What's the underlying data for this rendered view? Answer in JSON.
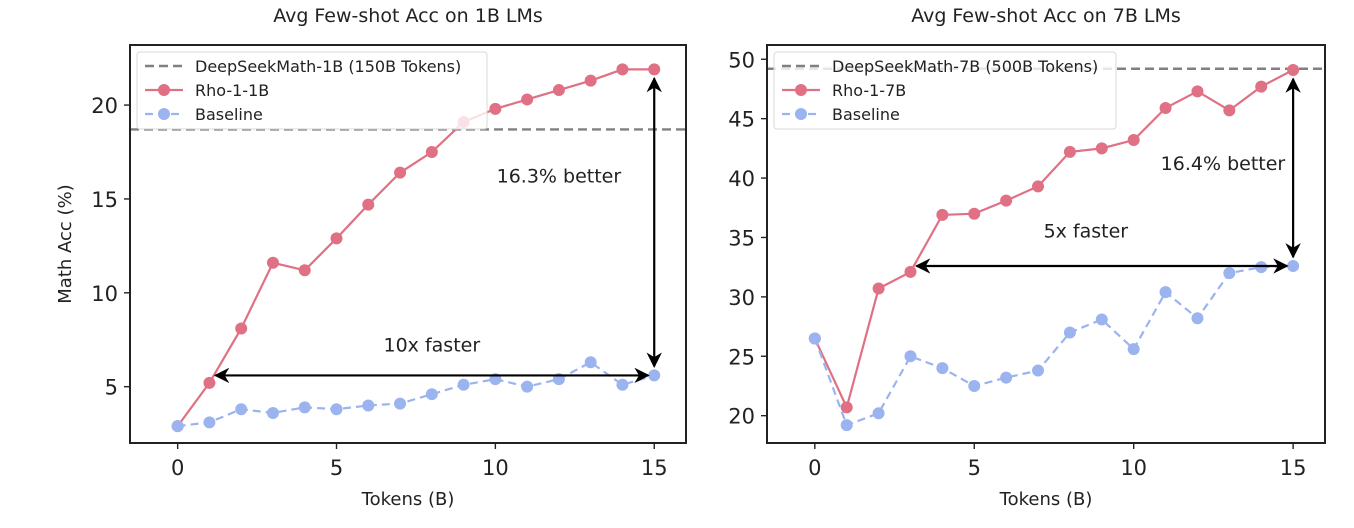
{
  "chart_data": [
    {
      "type": "line",
      "title": "Avg Few-shot Acc on 1B LMs",
      "xlabel": "Tokens (B)",
      "ylabel": "Math Acc (%)",
      "xlim": [
        -1.5,
        16.0
      ],
      "ylim": [
        2.0,
        23.2
      ],
      "xticks": [
        0,
        5,
        10,
        15
      ],
      "yticks": [
        5,
        10,
        15,
        20
      ],
      "grid": false,
      "legend_position": "top-left",
      "reference_line": {
        "label": "DeepSeekMath-1B (150B Tokens)",
        "value": 18.7,
        "color": "#808080"
      },
      "series": [
        {
          "name": "Rho-1-1B",
          "color": "#e07083",
          "dashed": false,
          "x": [
            0,
            1,
            2,
            3,
            4,
            5,
            6,
            7,
            8,
            9,
            10,
            11,
            12,
            13,
            14,
            15
          ],
          "y": [
            2.9,
            5.2,
            8.1,
            11.6,
            11.2,
            12.9,
            14.7,
            16.4,
            17.5,
            19.1,
            19.8,
            20.3,
            20.8,
            21.3,
            21.9,
            21.9
          ]
        },
        {
          "name": "Baseline",
          "color": "#9bb4f0",
          "dashed": true,
          "x": [
            0,
            1,
            2,
            3,
            4,
            5,
            6,
            7,
            8,
            9,
            10,
            11,
            12,
            13,
            14,
            15
          ],
          "y": [
            2.9,
            3.1,
            3.8,
            3.6,
            3.9,
            3.8,
            4.0,
            4.1,
            4.6,
            5.1,
            5.4,
            5.0,
            5.4,
            6.3,
            5.1,
            5.6
          ]
        }
      ],
      "annotations": [
        {
          "text": "16.3% better",
          "kind": "vertical-arrow",
          "x": 15,
          "y_from": 5.6,
          "y_to": 21.9,
          "label_x": 12.0,
          "label_y": 16.2
        },
        {
          "text": "10x faster",
          "kind": "horizontal-arrow",
          "y": 5.6,
          "x_from": 1,
          "x_to": 15,
          "label_x": 8.0,
          "label_y": 7.2
        }
      ]
    },
    {
      "type": "line",
      "title": "Avg Few-shot Acc on 7B LMs",
      "xlabel": "Tokens (B)",
      "ylabel": "",
      "xlim": [
        -1.5,
        16.0
      ],
      "ylim": [
        17.7,
        51.2
      ],
      "xticks": [
        0,
        5,
        10,
        15
      ],
      "yticks": [
        20,
        25,
        30,
        35,
        40,
        45,
        50
      ],
      "grid": false,
      "legend_position": "top-left",
      "reference_line": {
        "label": "DeepSeekMath-7B (500B Tokens)",
        "value": 49.2,
        "color": "#808080"
      },
      "series": [
        {
          "name": "Rho-1-7B",
          "color": "#e07083",
          "dashed": false,
          "x": [
            0,
            1,
            2,
            3,
            4,
            5,
            6,
            7,
            8,
            9,
            10,
            11,
            12,
            13,
            14,
            15
          ],
          "y": [
            26.5,
            20.7,
            30.7,
            32.1,
            36.9,
            37.0,
            38.1,
            39.3,
            42.2,
            42.5,
            43.2,
            45.9,
            47.3,
            45.7,
            47.7,
            49.1
          ]
        },
        {
          "name": "Baseline",
          "color": "#9bb4f0",
          "dashed": true,
          "x": [
            0,
            1,
            2,
            3,
            4,
            5,
            6,
            7,
            8,
            9,
            10,
            11,
            12,
            13,
            14,
            15
          ],
          "y": [
            26.5,
            19.2,
            20.2,
            25.0,
            24.0,
            22.5,
            23.2,
            23.8,
            27.0,
            28.1,
            25.6,
            30.4,
            28.2,
            32.0,
            32.5,
            32.6
          ]
        }
      ],
      "annotations": [
        {
          "text": "16.4% better",
          "kind": "vertical-arrow",
          "x": 15,
          "y_from": 32.6,
          "y_to": 49.1,
          "label_x": 12.8,
          "label_y": 41.2
        },
        {
          "text": "5x faster",
          "kind": "horizontal-arrow",
          "y": 32.6,
          "x_from": 3,
          "x_to": 15,
          "label_x": 8.5,
          "label_y": 35.5
        }
      ]
    }
  ]
}
